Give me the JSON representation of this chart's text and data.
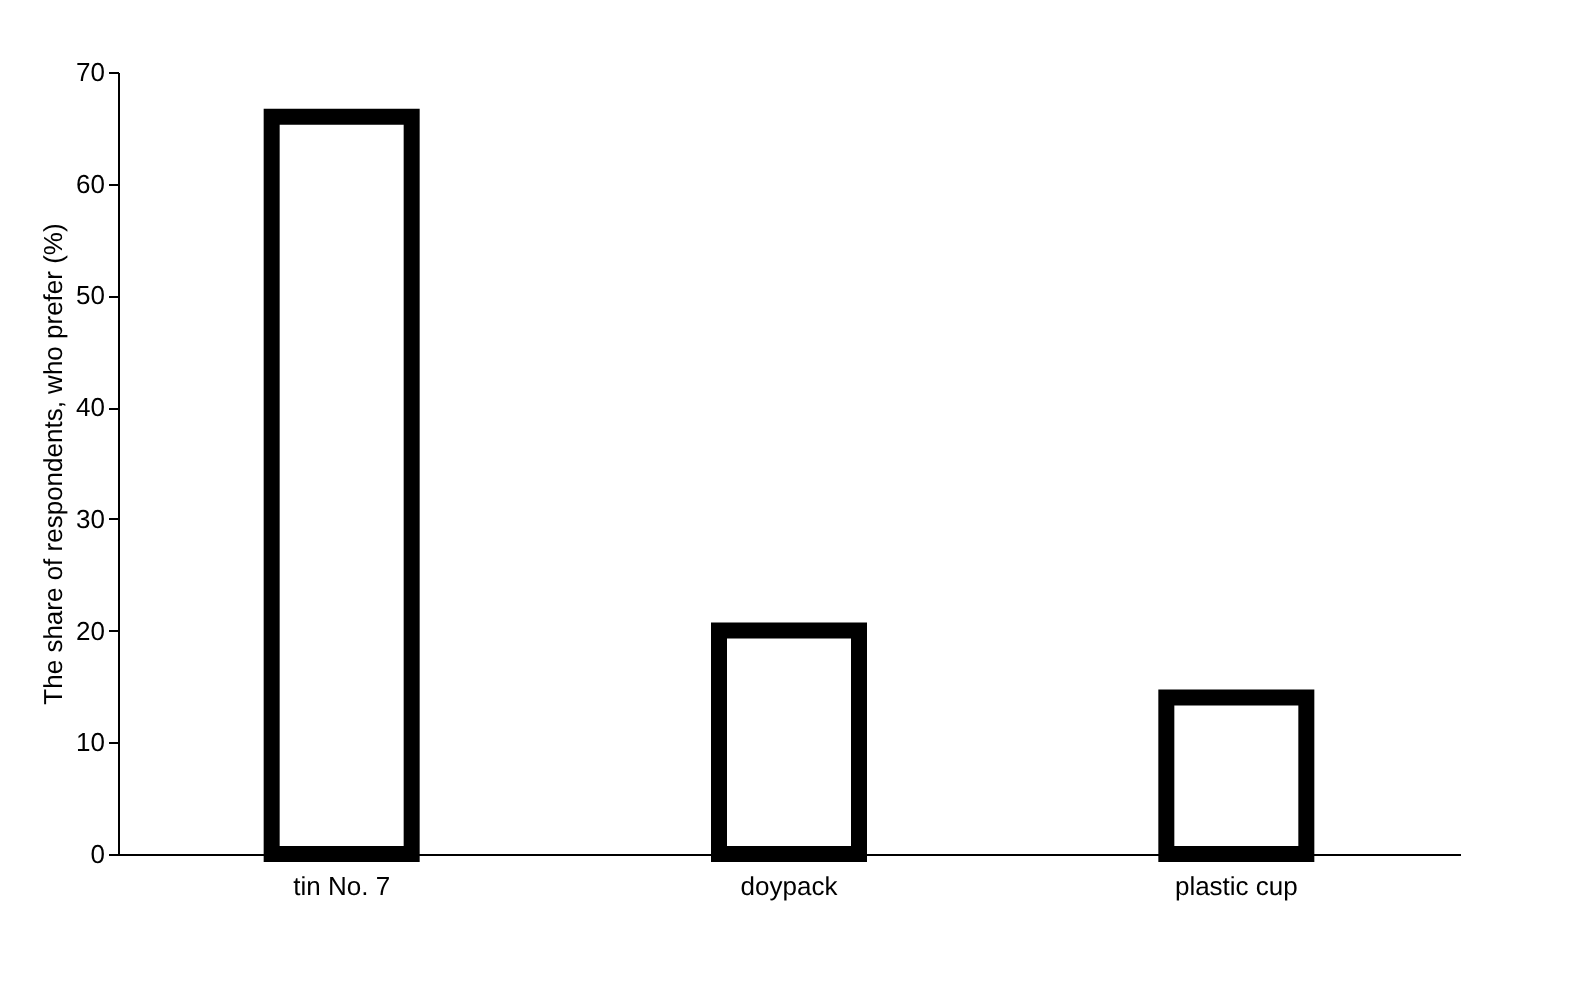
{
  "chart_data": {
    "type": "bar",
    "ylabel": "The share of respondents, who prefer (%)",
    "categories": [
      "tin No. 7",
      "doypack",
      "plastic cup"
    ],
    "values": [
      66,
      20,
      14
    ],
    "color": "#ffffff",
    "ylim": [
      0,
      70
    ],
    "yticks": [
      0,
      10,
      20,
      30,
      40,
      50,
      60,
      70
    ],
    "grid": false
  }
}
